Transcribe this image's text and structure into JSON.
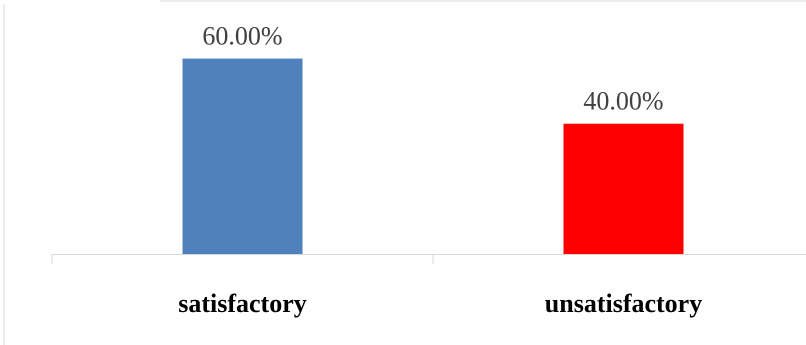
{
  "chart_data": {
    "type": "bar",
    "categories": [
      "satisfactory",
      "unsatisfactory"
    ],
    "values": [
      60.0,
      40.0
    ],
    "data_labels": [
      "60.00%",
      "40.00%"
    ],
    "colors": [
      "#4f81bd",
      "#ff0000"
    ],
    "ylim": [
      0,
      70
    ],
    "grid": false,
    "legend": "none",
    "title": "",
    "xlabel": "",
    "ylabel": ""
  },
  "style": {
    "border_color": "#d9d9d9",
    "axis_color": "#d9d9d9",
    "label_color": "#404040",
    "category_color": "#000000"
  }
}
